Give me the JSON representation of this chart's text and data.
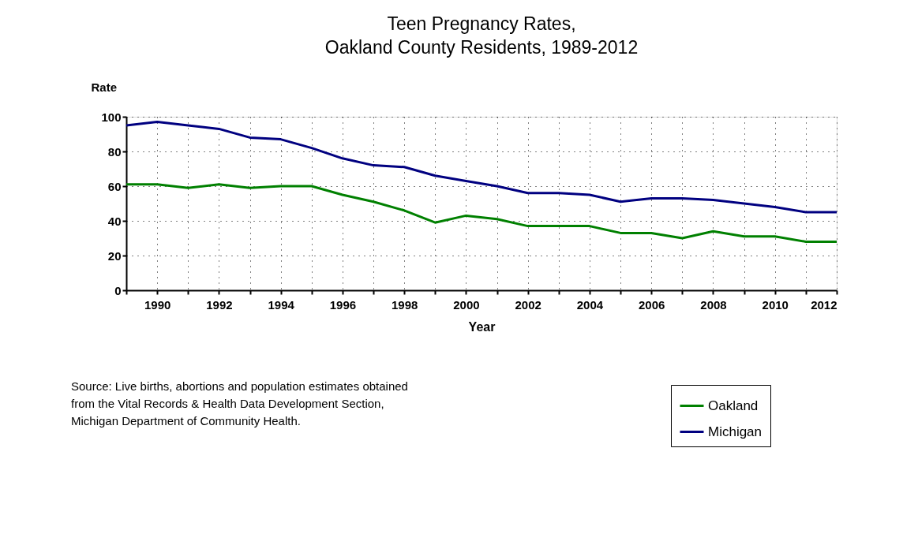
{
  "chart_data": {
    "type": "line",
    "title": "Teen Pregnancy Rates,\nOakland County Residents, 1989-2012",
    "xlabel": "Year",
    "ylabel": "Rate",
    "x": [
      1989,
      1990,
      1991,
      1992,
      1993,
      1994,
      1995,
      1996,
      1997,
      1998,
      1999,
      2000,
      2001,
      2002,
      2003,
      2004,
      2005,
      2006,
      2007,
      2008,
      2009,
      2010,
      2011,
      2012
    ],
    "series": [
      {
        "name": "Oakland",
        "color": "#008000",
        "values": [
          61,
          61,
          59,
          61,
          59,
          60,
          60,
          55,
          51,
          46,
          39,
          43,
          41,
          37,
          37,
          37,
          33,
          33,
          30,
          34,
          31,
          31,
          28,
          28
        ]
      },
      {
        "name": "Michigan",
        "color": "#000080",
        "values": [
          95,
          97,
          95,
          93,
          88,
          87,
          82,
          76,
          72,
          71,
          66,
          63,
          60,
          56,
          56,
          55,
          51,
          53,
          53,
          52,
          50,
          48,
          45,
          45
        ]
      }
    ],
    "xlim": [
      1989,
      2012
    ],
    "xticks": [
      {
        "value": 1989,
        "label": null
      },
      1990,
      {
        "value": 1991,
        "label": null
      },
      1992,
      {
        "value": 1993,
        "label": null
      },
      1994,
      {
        "value": 1995,
        "label": null
      },
      1996,
      {
        "value": 1997,
        "label": null
      },
      1998,
      {
        "value": 1999,
        "label": null
      },
      2000,
      {
        "value": 2001,
        "label": null
      },
      2002,
      {
        "value": 2003,
        "label": null
      },
      2004,
      {
        "value": 2005,
        "label": null
      },
      2006,
      {
        "value": 2007,
        "label": null
      },
      2008,
      {
        "value": 2009,
        "label": null
      },
      2010,
      {
        "value": 2011,
        "label": null
      },
      2012
    ],
    "ylim": [
      0,
      100
    ],
    "yticks": [
      0,
      20,
      40,
      60,
      80,
      100
    ],
    "grid": true,
    "legend": "bottom right",
    "line_style": "solid",
    "marker": "none",
    "annotations": [
      "Source: Live births, abortions and population estimates obtained\n from the Vital Records & Health Data Development Section,\nMichigan Department of Community Health."
    ]
  }
}
